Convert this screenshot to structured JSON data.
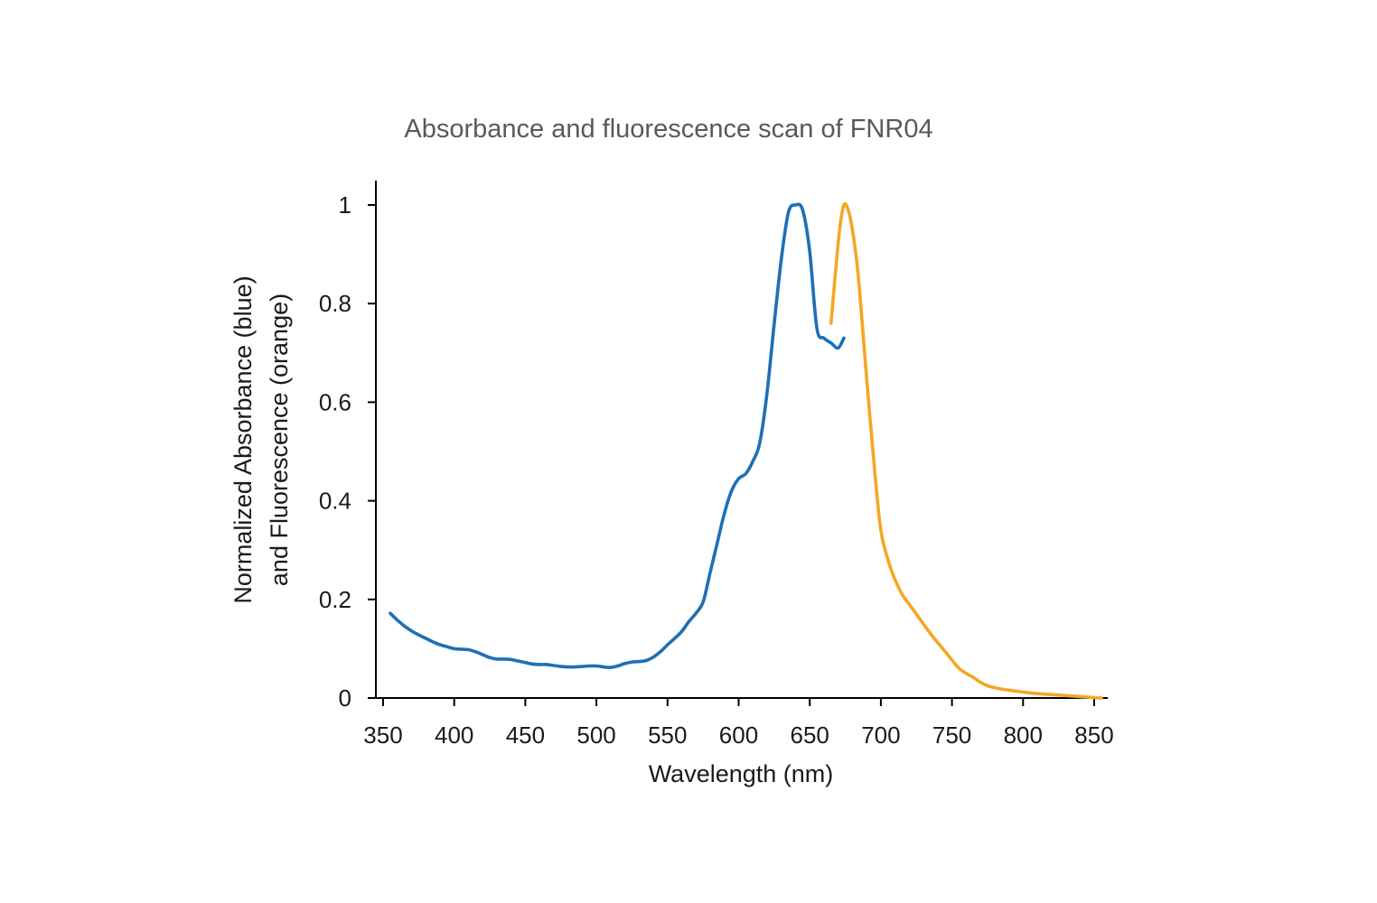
{
  "chart_data": {
    "type": "line",
    "title": "Absorbance and fluorescence scan of FNR04",
    "xlabel": "Wavelength (nm)",
    "ylabel_lines": [
      "Normalized Absorbance (blue)",
      "and Fluorescence (orange)"
    ],
    "xlim": [
      350,
      855
    ],
    "ylim": [
      0,
      1.05
    ],
    "x_ticks": [
      350,
      400,
      450,
      500,
      550,
      600,
      650,
      700,
      750,
      800,
      850
    ],
    "x_tick_labels": [
      "350",
      "400",
      "450",
      "500",
      "550",
      "600",
      "650",
      "700",
      "750",
      "800",
      "850"
    ],
    "y_ticks": [
      0,
      0.2,
      0.4,
      0.6,
      0.8,
      1
    ],
    "y_tick_labels": [
      "0",
      "0.2",
      "0.4",
      "0.6",
      "0.8",
      "1"
    ],
    "grid": false,
    "series": [
      {
        "name": "Absorbance",
        "color": "#1f6fb5",
        "x": [
          355,
          360,
          365,
          370,
          375,
          380,
          385,
          390,
          395,
          400,
          405,
          410,
          415,
          420,
          425,
          430,
          435,
          440,
          445,
          450,
          455,
          460,
          465,
          470,
          475,
          480,
          485,
          490,
          495,
          500,
          505,
          510,
          515,
          520,
          525,
          530,
          535,
          540,
          545,
          550,
          555,
          560,
          565,
          570,
          575,
          580,
          585,
          590,
          595,
          600,
          605,
          610,
          615,
          620,
          625,
          630,
          635,
          640,
          645,
          650,
          655,
          660,
          665,
          670,
          674
        ],
        "y": [
          0.172,
          0.158,
          0.146,
          0.136,
          0.128,
          0.121,
          0.114,
          0.108,
          0.104,
          0.1,
          0.099,
          0.098,
          0.094,
          0.088,
          0.082,
          0.079,
          0.079,
          0.078,
          0.075,
          0.072,
          0.069,
          0.068,
          0.068,
          0.066,
          0.064,
          0.063,
          0.063,
          0.064,
          0.065,
          0.065,
          0.063,
          0.062,
          0.065,
          0.07,
          0.073,
          0.074,
          0.076,
          0.083,
          0.094,
          0.108,
          0.121,
          0.135,
          0.155,
          0.172,
          0.195,
          0.255,
          0.315,
          0.375,
          0.42,
          0.445,
          0.455,
          0.48,
          0.52,
          0.62,
          0.76,
          0.89,
          0.985,
          1.0,
          0.99,
          0.905,
          0.75,
          0.73,
          0.72,
          0.71,
          0.73
        ],
        "x_display": [
          355,
          360,
          365,
          370,
          375,
          380,
          385,
          390,
          395,
          400,
          405,
          410,
          415,
          420,
          425,
          430,
          435,
          440,
          445,
          450,
          455,
          460,
          465,
          470,
          475,
          480,
          485,
          490,
          495,
          500,
          505,
          510,
          515,
          520,
          525,
          530,
          535,
          540,
          545,
          550,
          555,
          560,
          565,
          570,
          575,
          580,
          585,
          590,
          595,
          600,
          605,
          610,
          615,
          620,
          625,
          630,
          635,
          640,
          645,
          650,
          655,
          660,
          665,
          670,
          674
        ]
      },
      {
        "name": "Fluorescence",
        "color": "#f5a623",
        "x": [
          665,
          668,
          671,
          674,
          677,
          680,
          684,
          688,
          692,
          696,
          700,
          705,
          710,
          715,
          720,
          725,
          730,
          735,
          740,
          745,
          750,
          755,
          760,
          765,
          770,
          775,
          780,
          785,
          790,
          800,
          810,
          820,
          830,
          840,
          850,
          855
        ],
        "y": [
          0.76,
          0.86,
          0.95,
          1.0,
          0.99,
          0.95,
          0.86,
          0.72,
          0.58,
          0.45,
          0.34,
          0.28,
          0.24,
          0.21,
          0.19,
          0.17,
          0.15,
          0.13,
          0.112,
          0.095,
          0.077,
          0.06,
          0.05,
          0.042,
          0.032,
          0.025,
          0.021,
          0.018,
          0.016,
          0.012,
          0.009,
          0.007,
          0.005,
          0.003,
          0.001,
          0.0
        ]
      }
    ]
  }
}
